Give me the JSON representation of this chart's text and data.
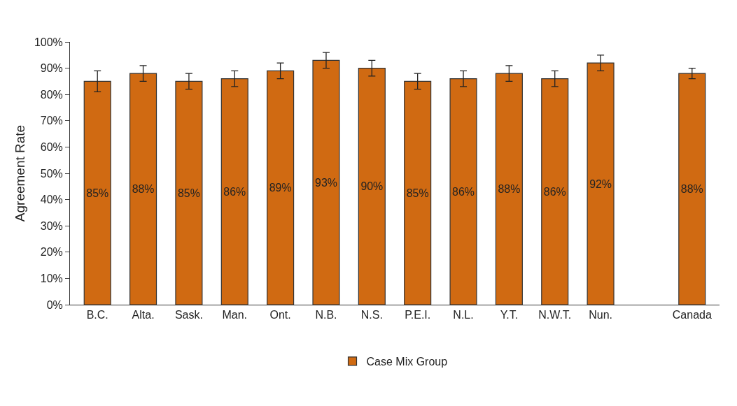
{
  "chart_data": {
    "type": "bar",
    "ylabel": "Agreement Rate",
    "categories": [
      "B.C.",
      "Alta.",
      "Sask.",
      "Man.",
      "Ont.",
      "N.B.",
      "N.S.",
      "P.E.I.",
      "N.L.",
      "Y.T.",
      "N.W.T.",
      "Nun.",
      null,
      "Canada"
    ],
    "series": [
      {
        "name": "Case Mix Group",
        "color": "#d06a12",
        "values": [
          85,
          88,
          85,
          86,
          89,
          93,
          90,
          85,
          86,
          88,
          86,
          92,
          null,
          88
        ],
        "errors": [
          [
            81,
            89
          ],
          [
            85,
            91
          ],
          [
            82,
            88
          ],
          [
            83,
            89
          ],
          [
            86,
            92
          ],
          [
            90,
            96
          ],
          [
            87,
            93
          ],
          [
            82,
            88
          ],
          [
            83,
            89
          ],
          [
            85,
            91
          ],
          [
            83,
            89
          ],
          [
            89,
            95
          ],
          null,
          [
            86,
            90
          ]
        ],
        "value_labels": [
          "85%",
          "88%",
          "85%",
          "86%",
          "89%",
          "93%",
          "90%",
          "85%",
          "86%",
          "88%",
          "86%",
          "92%",
          null,
          "88%"
        ]
      }
    ],
    "ylim": [
      0,
      100
    ],
    "yticks": [
      {
        "value": 0,
        "label": "0%"
      },
      {
        "value": 10,
        "label": "10%"
      },
      {
        "value": 20,
        "label": "20%"
      },
      {
        "value": 30,
        "label": "30%"
      },
      {
        "value": 40,
        "label": "40%"
      },
      {
        "value": 50,
        "label": "50%"
      },
      {
        "value": 60,
        "label": "60%"
      },
      {
        "value": 70,
        "label": "70%"
      },
      {
        "value": 80,
        "label": "80%"
      },
      {
        "value": 90,
        "label": "90%"
      },
      {
        "value": 100,
        "label": "100%"
      }
    ],
    "legend": "bottom"
  }
}
